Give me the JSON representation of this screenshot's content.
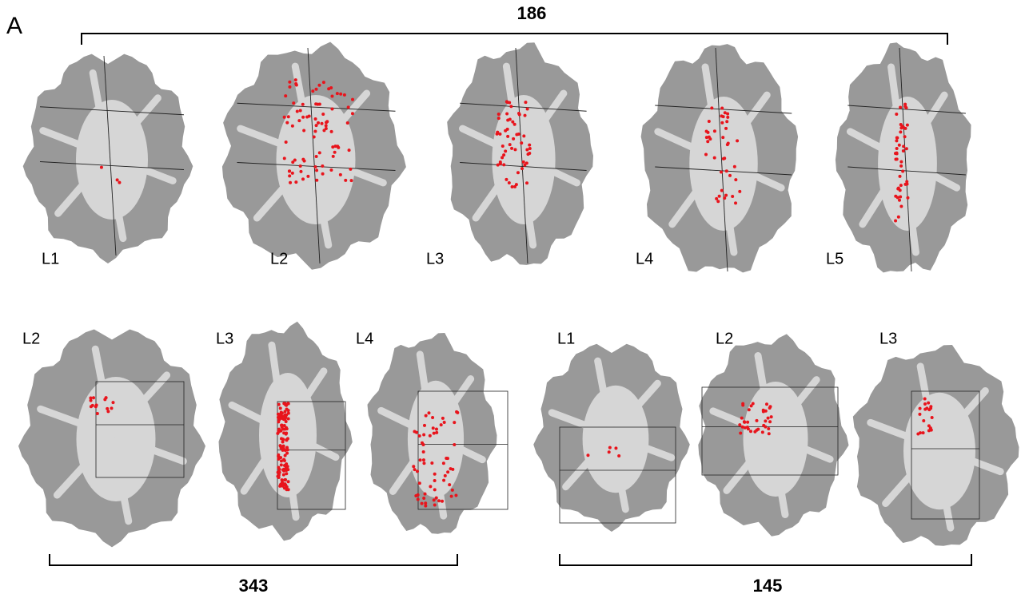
{
  "panel_label": "A",
  "groups": [
    {
      "count": 186,
      "slices": [
        "L1",
        "L2",
        "L3",
        "L4",
        "L5"
      ]
    },
    {
      "count": 343,
      "slices": [
        "L2",
        "L3",
        "L4"
      ]
    },
    {
      "count": 145,
      "slices": [
        "L1",
        "L2",
        "L3"
      ]
    }
  ]
}
